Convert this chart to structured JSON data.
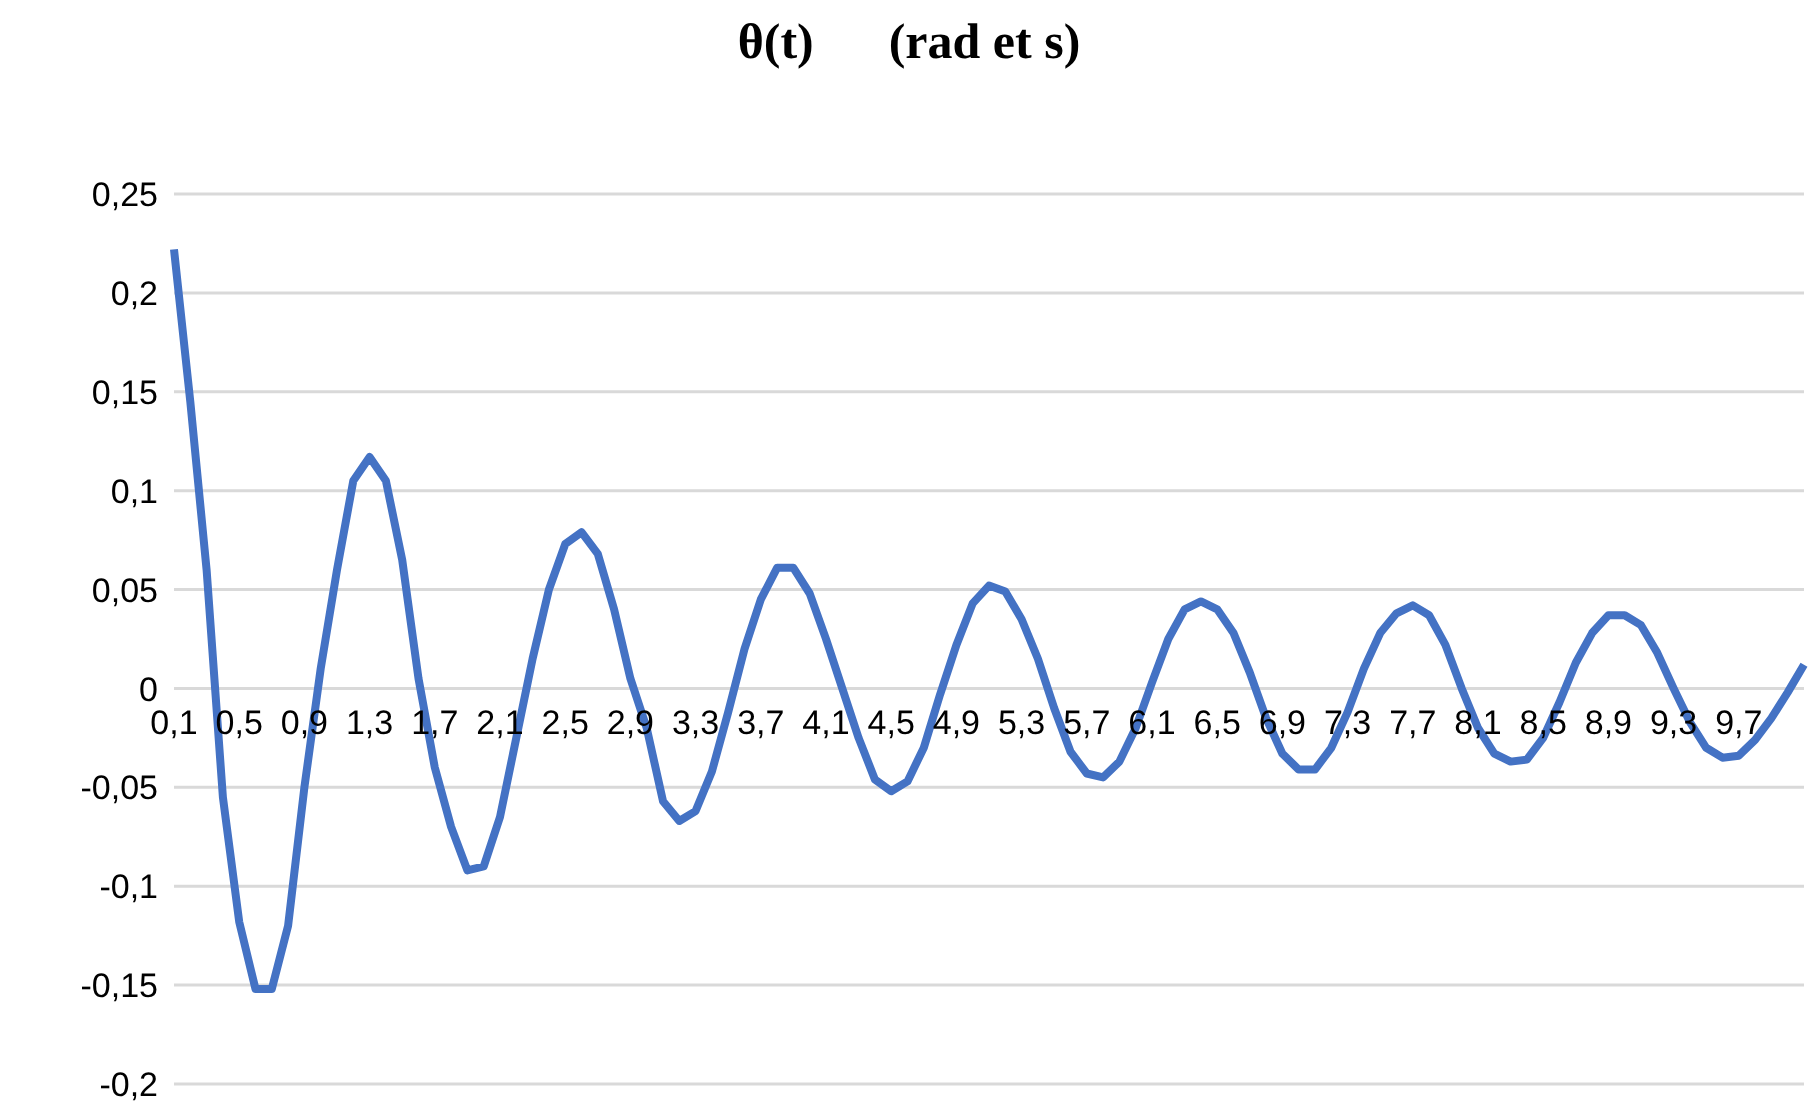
{
  "chart_data": {
    "type": "line",
    "title": "θ(t)      (rad et s)",
    "categories": [
      "0,1",
      null,
      null,
      null,
      "0,5",
      null,
      null,
      null,
      "0,9",
      null,
      null,
      null,
      "1,3",
      null,
      null,
      null,
      "1,7",
      null,
      null,
      null,
      "2,1",
      null,
      null,
      null,
      "2,5",
      null,
      null,
      null,
      "2,9",
      null,
      null,
      null,
      "3,3",
      null,
      null,
      null,
      "3,7",
      null,
      null,
      null,
      "4,1",
      null,
      null,
      null,
      "4,5",
      null,
      null,
      null,
      "4,9",
      null,
      null,
      null,
      "5,3",
      null,
      null,
      null,
      "5,7",
      null,
      null,
      null,
      "6,1",
      null,
      null,
      null,
      "6,5",
      null,
      null,
      null,
      "6,9",
      null,
      null,
      null,
      "7,3",
      null,
      null,
      null,
      "7,7",
      null,
      null,
      null,
      "8,1",
      null,
      null,
      null,
      "8,5",
      null,
      null,
      null,
      "8,9",
      null,
      null,
      null,
      "9,3",
      null,
      null,
      null,
      "9,7",
      null,
      null,
      null,
      null
    ],
    "series": [
      {
        "color": "#4472c4",
        "values": [
          0.222,
          0.145,
          0.06,
          -0.055,
          -0.118,
          -0.152,
          -0.152,
          -0.12,
          -0.05,
          0.01,
          0.06,
          0.105,
          0.117,
          0.105,
          0.065,
          0.005,
          -0.04,
          -0.07,
          -0.092,
          -0.09,
          -0.065,
          -0.025,
          0.015,
          0.05,
          0.073,
          0.079,
          0.068,
          0.04,
          0.005,
          -0.02,
          -0.057,
          -0.067,
          -0.062,
          -0.042,
          -0.012,
          0.02,
          0.045,
          0.061,
          0.061,
          0.048,
          0.025,
          0.0,
          -0.025,
          -0.046,
          -0.052,
          -0.047,
          -0.03,
          -0.003,
          0.022,
          0.043,
          0.052,
          0.049,
          0.035,
          0.015,
          -0.01,
          -0.032,
          -0.043,
          -0.045,
          -0.037,
          -0.02,
          0.003,
          0.025,
          0.04,
          0.044,
          0.04,
          0.028,
          0.008,
          -0.015,
          -0.033,
          -0.041,
          -0.041,
          -0.03,
          -0.012,
          0.01,
          0.028,
          0.038,
          0.042,
          0.037,
          0.022,
          0.0,
          -0.02,
          -0.033,
          -0.037,
          -0.036,
          -0.025,
          -0.007,
          0.013,
          0.028,
          0.037,
          0.037,
          0.032,
          0.018,
          0.0,
          -0.017,
          -0.03,
          -0.035,
          -0.034,
          -0.026,
          -0.015,
          -0.002,
          0.012
        ]
      }
    ],
    "ylim": [
      -0.2,
      0.25
    ],
    "yticks": [
      {
        "value": -0.2,
        "label": "-0,2"
      },
      {
        "value": -0.15,
        "label": "-0,15"
      },
      {
        "value": -0.1,
        "label": "-0,1"
      },
      {
        "value": -0.05,
        "label": "-0,05"
      },
      {
        "value": 0,
        "label": "0"
      },
      {
        "value": 0.05,
        "label": "0,05"
      },
      {
        "value": 0.1,
        "label": "0,1"
      },
      {
        "value": 0.15,
        "label": "0,15"
      },
      {
        "value": 0.2,
        "label": "0,2"
      },
      {
        "value": 0.25,
        "label": "0,25"
      }
    ],
    "grid": "y",
    "marker": "none",
    "line_style": "solid"
  }
}
